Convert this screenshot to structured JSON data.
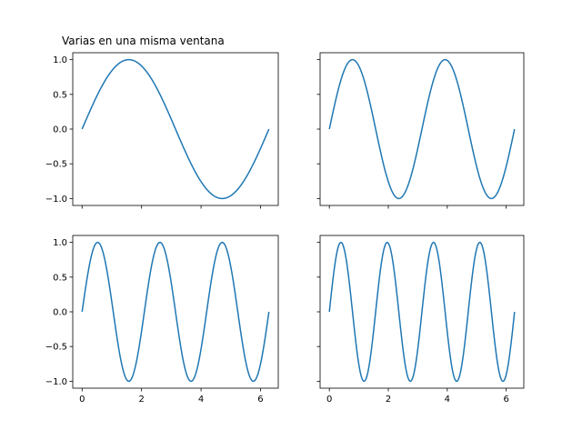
{
  "figure": {
    "title": "Varias en una misma ventana"
  },
  "chart_data": [
    {
      "type": "line",
      "title": "Varias en una misma ventana",
      "function": "sin(1x)",
      "x_range": [
        0,
        6.283
      ],
      "xlim": [
        -0.314,
        6.597
      ],
      "ylim": [
        -1.1,
        1.1
      ],
      "yticks": [
        -1.0,
        -0.5,
        0.0,
        0.5,
        1.0
      ],
      "ytick_labels": [
        "−1.0",
        "−0.5",
        "0.0",
        "0.5",
        "1.0"
      ],
      "xticks": [
        0,
        2,
        4,
        6
      ],
      "xtick_labels": [],
      "show_ytick_labels": true,
      "series": [
        {
          "frequency": 1,
          "color": "#1f77b4"
        }
      ]
    },
    {
      "type": "line",
      "title": "",
      "function": "sin(2x)",
      "x_range": [
        0,
        6.283
      ],
      "xlim": [
        -0.314,
        6.597
      ],
      "ylim": [
        -1.1,
        1.1
      ],
      "yticks": [
        -1.0,
        -0.5,
        0.0,
        0.5,
        1.0
      ],
      "ytick_labels": [],
      "xticks": [
        0,
        2,
        4,
        6
      ],
      "xtick_labels": [],
      "show_ytick_labels": false,
      "series": [
        {
          "frequency": 2,
          "color": "#1f77b4"
        }
      ]
    },
    {
      "type": "line",
      "title": "",
      "function": "sin(3x)",
      "x_range": [
        0,
        6.283
      ],
      "xlim": [
        -0.314,
        6.597
      ],
      "ylim": [
        -1.1,
        1.1
      ],
      "yticks": [
        -1.0,
        -0.5,
        0.0,
        0.5,
        1.0
      ],
      "ytick_labels": [
        "−1.0",
        "−0.5",
        "0.0",
        "0.5",
        "1.0"
      ],
      "xticks": [
        0,
        2,
        4,
        6
      ],
      "xtick_labels": [
        "0",
        "2",
        "4",
        "6"
      ],
      "show_ytick_labels": true,
      "series": [
        {
          "frequency": 3,
          "color": "#1f77b4"
        }
      ]
    },
    {
      "type": "line",
      "title": "",
      "function": "sin(4x)",
      "x_range": [
        0,
        6.283
      ],
      "xlim": [
        -0.314,
        6.597
      ],
      "ylim": [
        -1.1,
        1.1
      ],
      "yticks": [
        -1.0,
        -0.5,
        0.0,
        0.5,
        1.0
      ],
      "ytick_labels": [],
      "xticks": [
        0,
        2,
        4,
        6
      ],
      "xtick_labels": [
        "0",
        "2",
        "4",
        "6"
      ],
      "show_ytick_labels": false,
      "series": [
        {
          "frequency": 4,
          "color": "#1f77b4"
        }
      ]
    }
  ]
}
